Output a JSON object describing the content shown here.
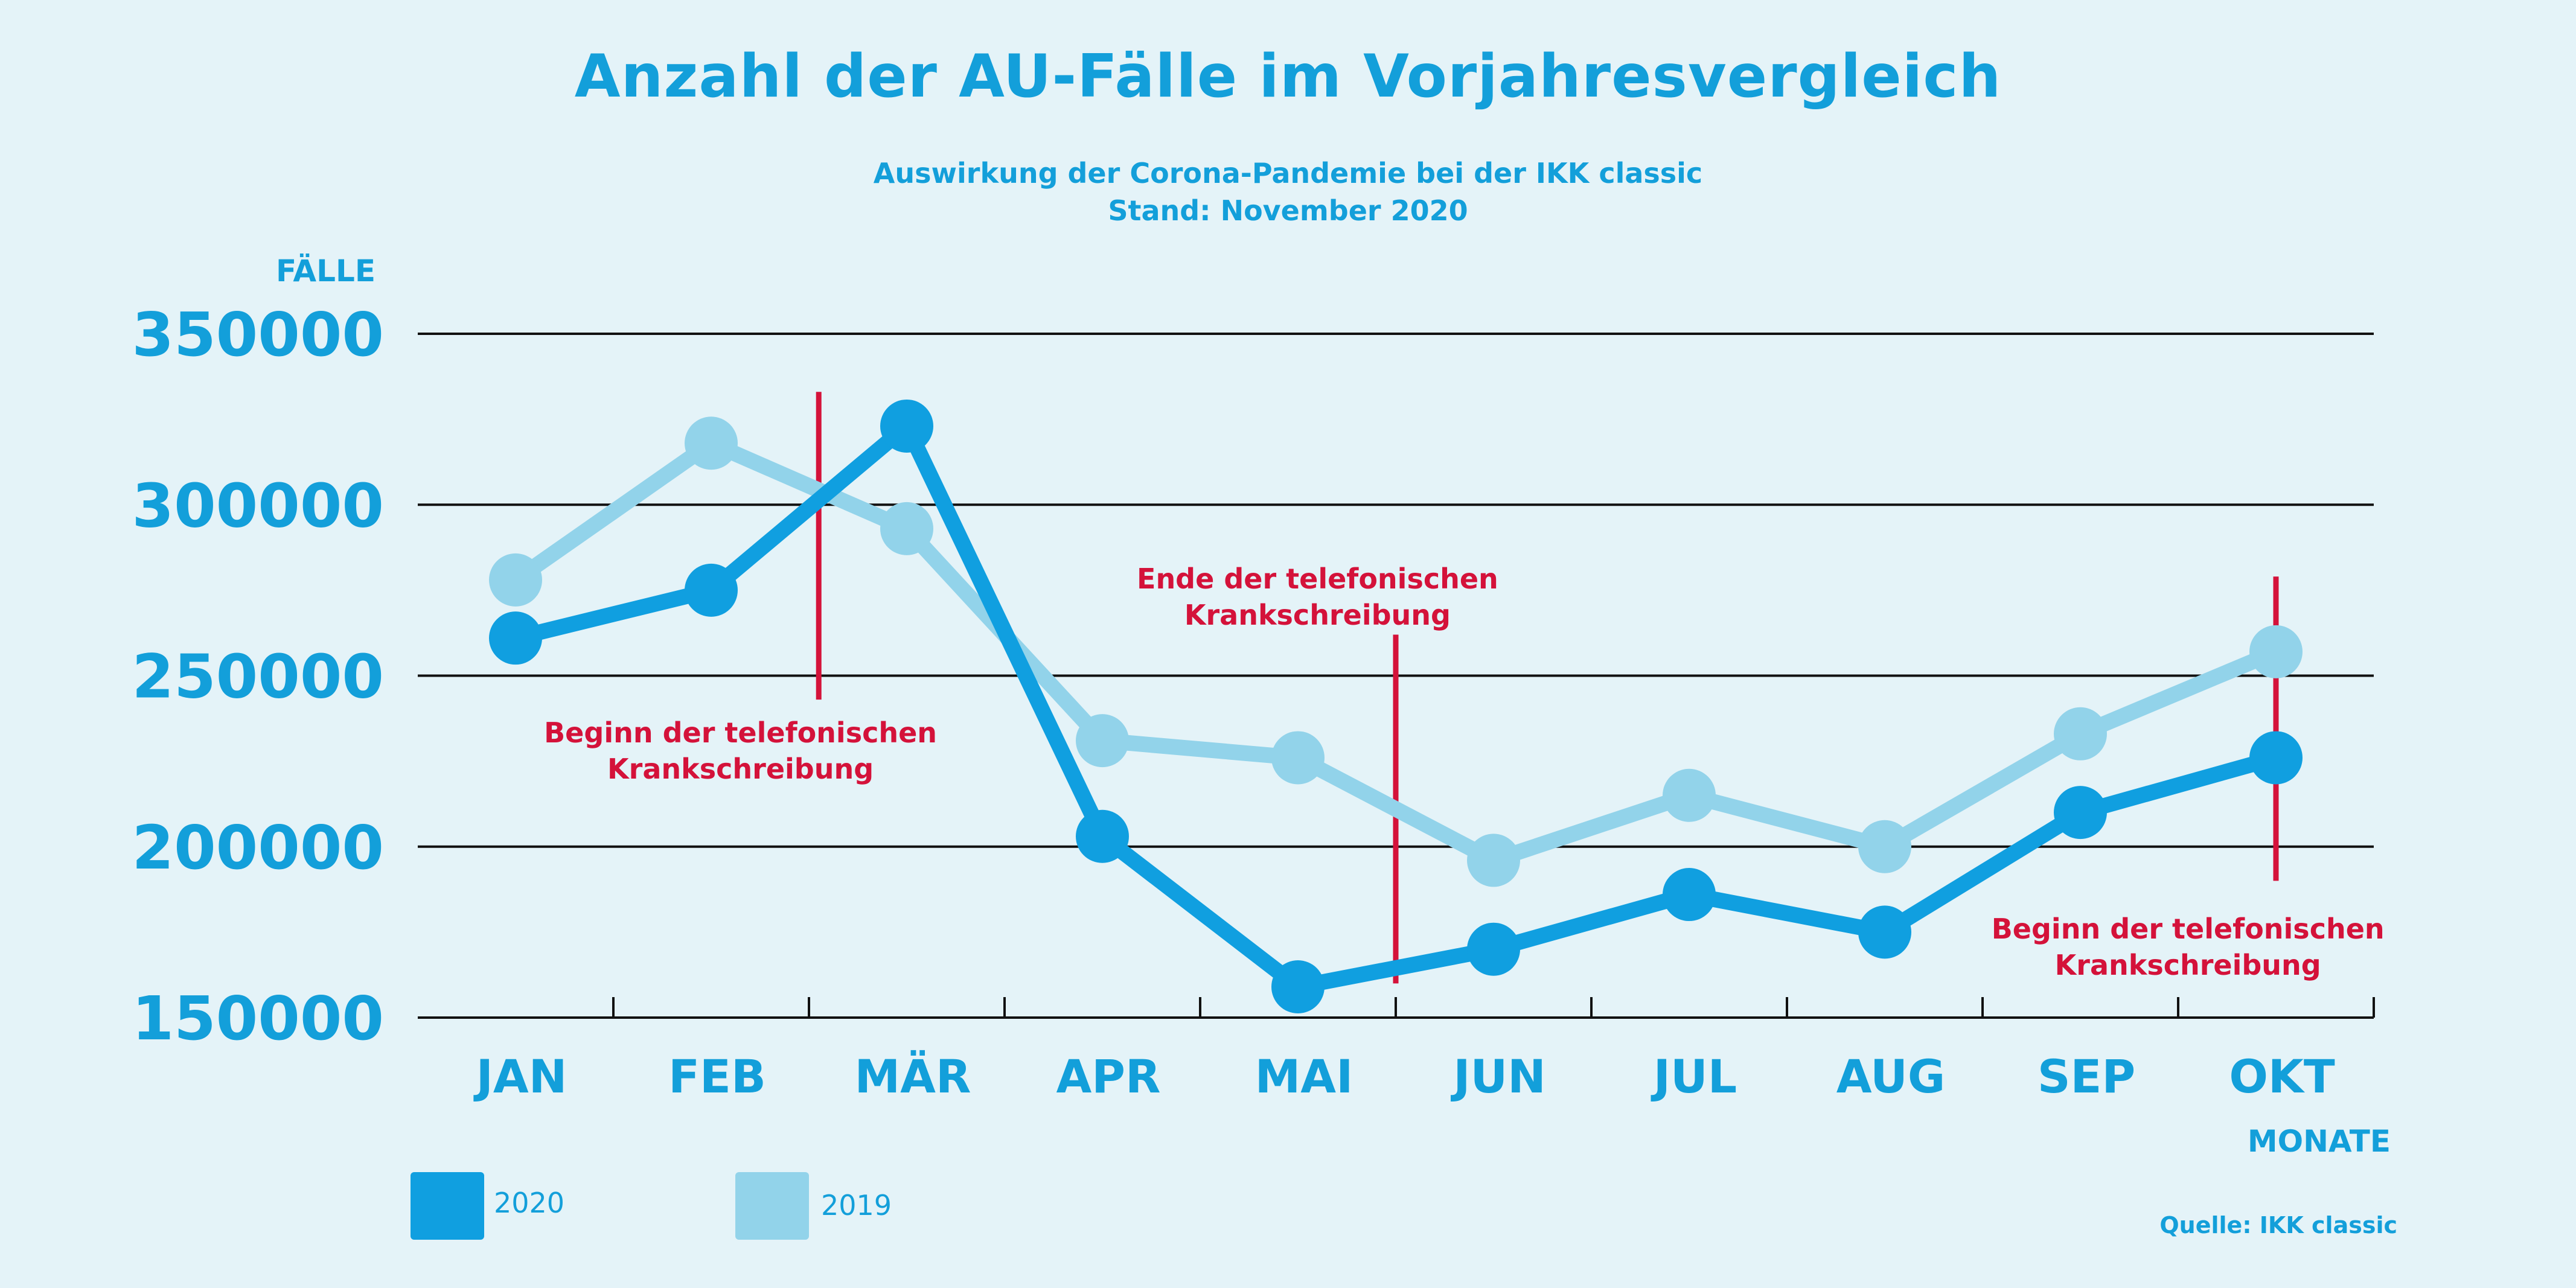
{
  "title": "Anzahl der AU-Fälle im Vorjahresvergleich",
  "subtitle_line1": "Auswirkung der Corona-Pandemie bei der IKK classic",
  "subtitle_line2": "Stand: November 2020",
  "source": "Quelle: IKK classic",
  "colors": {
    "series_2020": "#109fe0",
    "series_2019": "#92d3ea",
    "annotation": "#d4123a",
    "text": "#139fda",
    "grid": "#111111"
  },
  "legend": [
    {
      "label": "2020",
      "color": "#109fe0"
    },
    {
      "label": "2019",
      "color": "#92d3ea"
    }
  ],
  "chart_data": {
    "type": "line",
    "ylabel": "FÄLLE",
    "xlabel": "MONATE",
    "ylim": [
      150000,
      350000
    ],
    "yticks": [
      "350000",
      "300000",
      "250000",
      "200000",
      "150000"
    ],
    "categories": [
      "JAN",
      "FEB",
      "MÄR",
      "APR",
      "MAI",
      "JUN",
      "JUL",
      "AUG",
      "SEP",
      "OKT"
    ],
    "series": [
      {
        "name": "2020",
        "values": [
          261000,
          275000,
          323000,
          203000,
          159000,
          170000,
          186000,
          175000,
          210000,
          226000
        ]
      },
      {
        "name": "2019",
        "values": [
          278000,
          318000,
          293000,
          231000,
          226000,
          196000,
          215000,
          200000,
          233000,
          257000
        ]
      }
    ],
    "grid": true,
    "annotations": [
      {
        "lines": [
          "Beginn der telefonischen",
          "Krankschreibung"
        ],
        "x": "FEB–MÄR",
        "yrange": [
          243000,
          333000
        ],
        "label_position": "below"
      },
      {
        "lines": [
          "Ende der telefonischen",
          "Krankschreibung"
        ],
        "x": "MAI–JUN",
        "yrange": [
          160000,
          262000
        ],
        "label_position": "above"
      },
      {
        "lines": [
          "Beginn der telefonischen",
          "Krankschreibung"
        ],
        "x": "OKT",
        "yrange": [
          190000,
          279000
        ],
        "label_position": "below"
      }
    ]
  }
}
